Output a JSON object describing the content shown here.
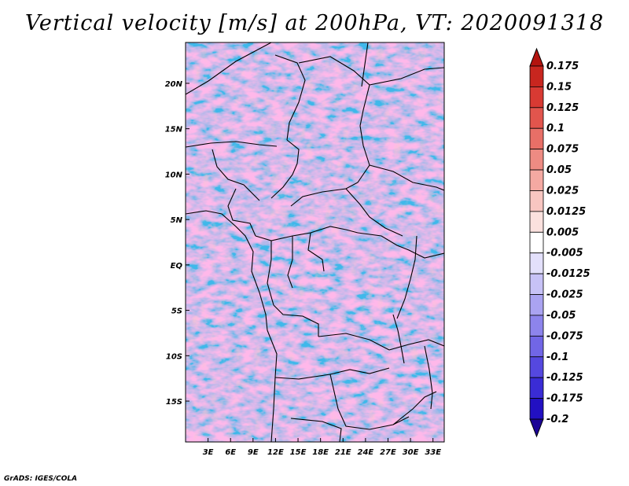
{
  "title": "Vertical velocity [m/s] at 200hPa, VT: 2020091318",
  "credit": "GrADS: IGES/COLA",
  "map": {
    "lat_labels": [
      "20N",
      "15N",
      "10N",
      "5N",
      "EQ",
      "5S",
      "10S",
      "15S"
    ],
    "lon_labels": [
      "3E",
      "6E",
      "9E",
      "12E",
      "15E",
      "18E",
      "21E",
      "24E",
      "27E",
      "30E",
      "33E"
    ],
    "lat_range": [
      -19.5,
      24.5
    ],
    "lon_range": [
      0.0,
      34.5
    ],
    "field": "vertical velocity at 200hPa"
  },
  "colorbar": {
    "labels": [
      "0.175",
      "0.15",
      "0.125",
      "0.1",
      "0.075",
      "0.05",
      "0.025",
      "0.0125",
      "0.005",
      "-0.005",
      "-0.0125",
      "-0.025",
      "-0.05",
      "-0.075",
      "-0.1",
      "-0.125",
      "-0.175",
      "-0.2"
    ],
    "colors": [
      "#b3140f",
      "#c8261f",
      "#d83a33",
      "#e2554d",
      "#e86f67",
      "#ee8b83",
      "#f4a9a2",
      "#f8c6c1",
      "#fbe1de",
      "#ffffff",
      "#e3e0fb",
      "#c7c2f6",
      "#aaa3f1",
      "#8d84ec",
      "#7166e6",
      "#5548df",
      "#3a2cd5",
      "#2210c2",
      "#1c0496"
    ]
  }
}
